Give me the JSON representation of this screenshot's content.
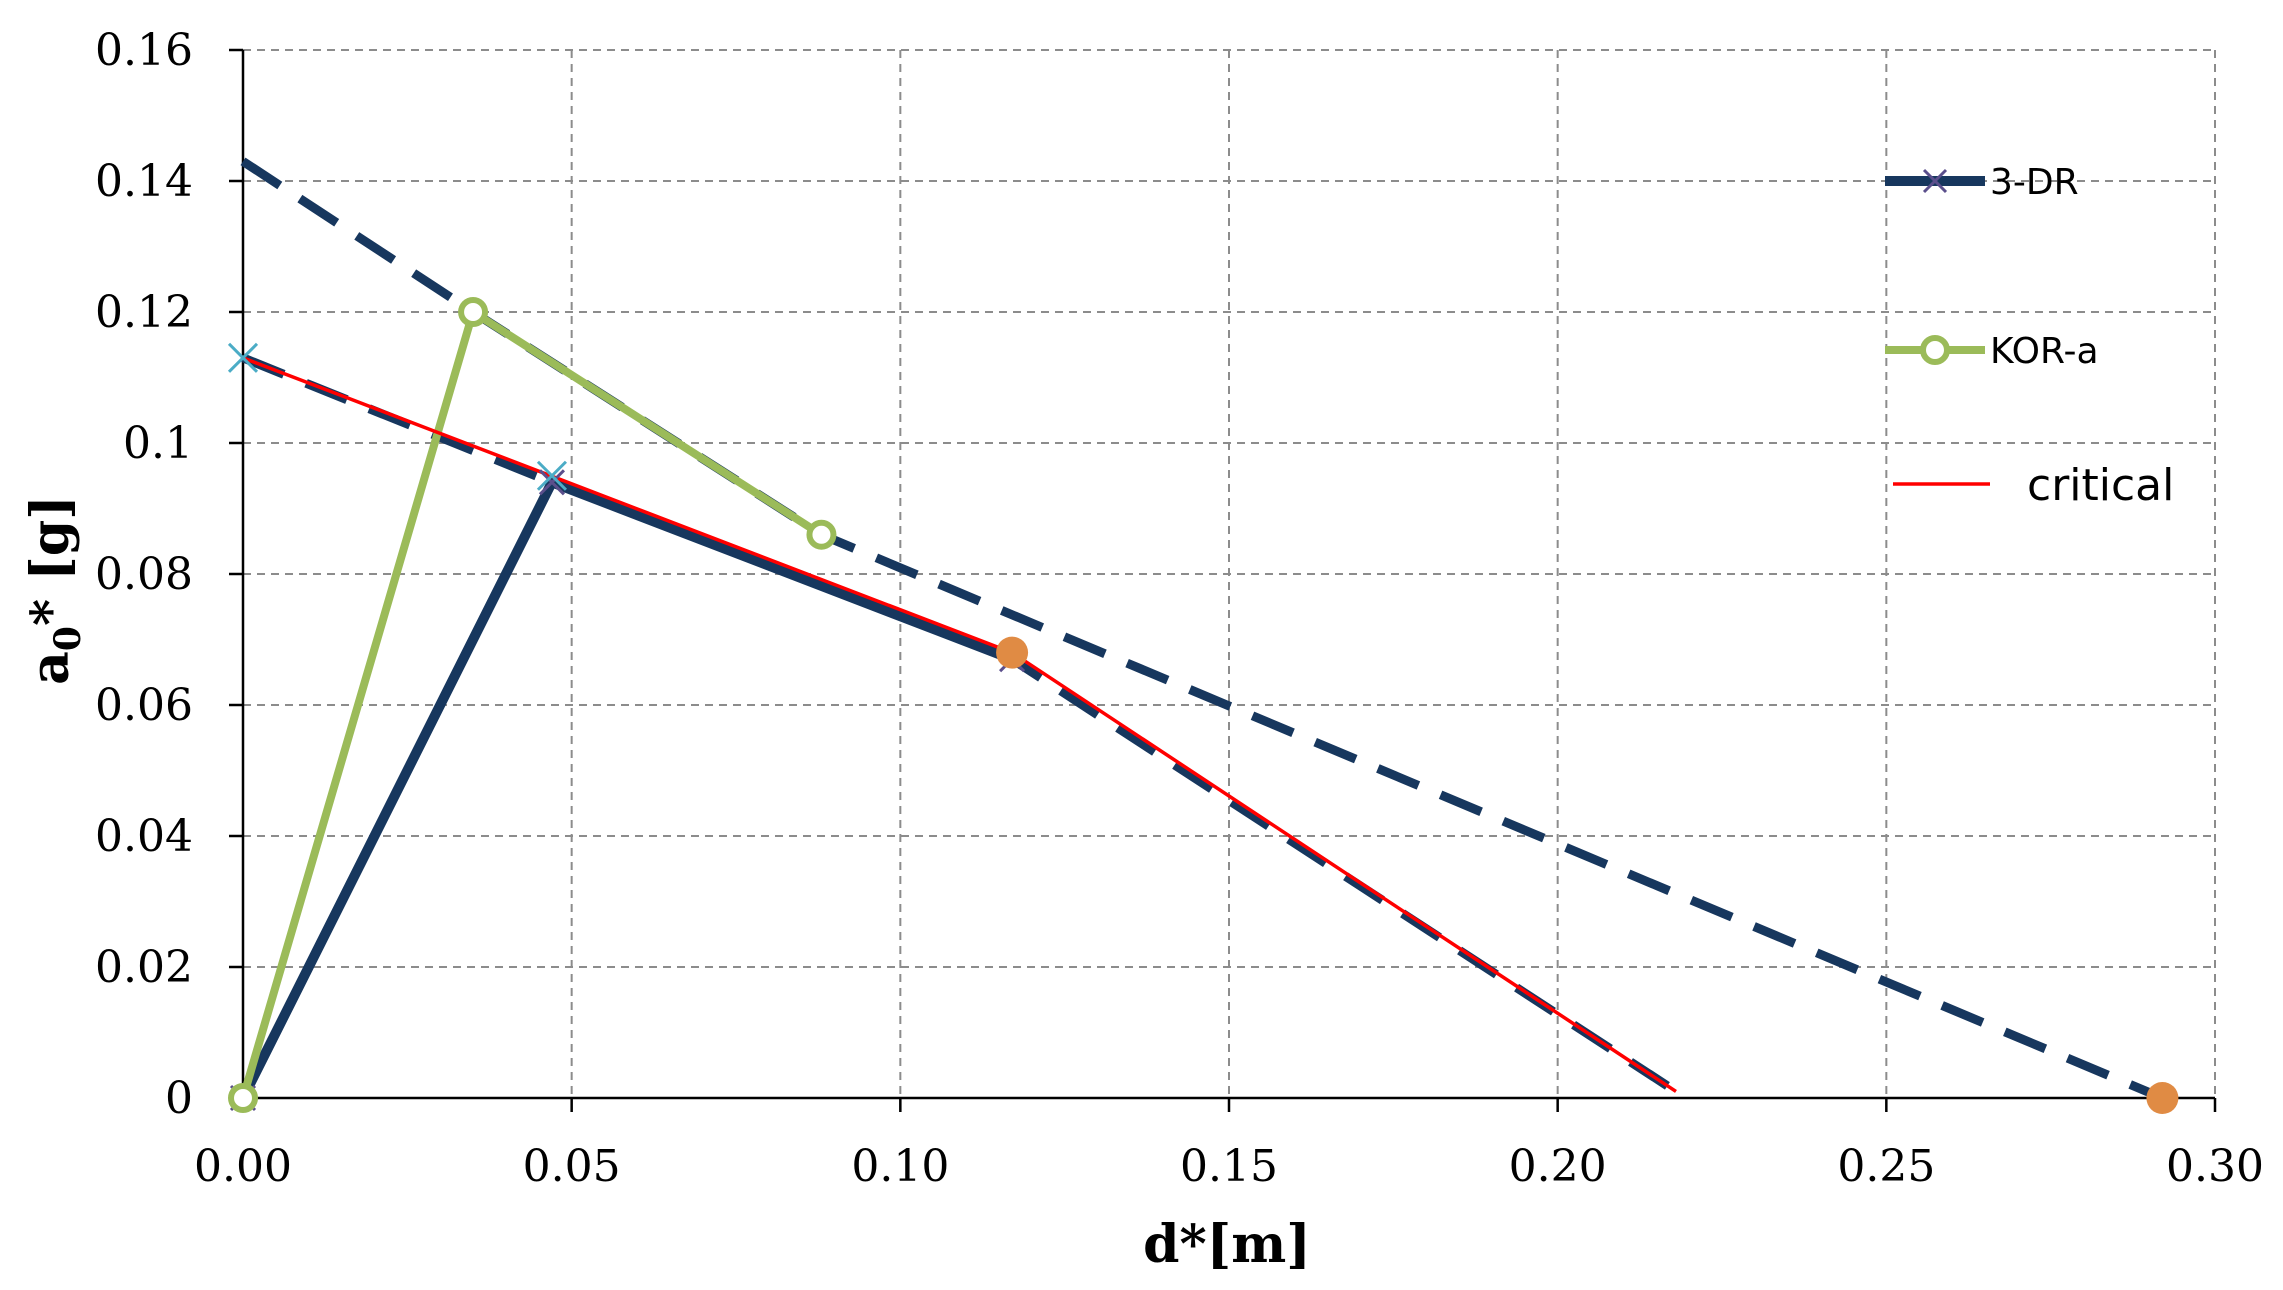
{
  "chart_data": {
    "type": "line",
    "xlabel": "d*[m]",
    "ylabel_main": "a",
    "ylabel_sub": "0",
    "ylabel_rest": "* [g]",
    "xlim": [
      0,
      0.3
    ],
    "ylim": [
      0,
      0.16
    ],
    "xticks": [
      0,
      0.05,
      0.1,
      0.15,
      0.2,
      0.25,
      0.3
    ],
    "yticks": [
      0,
      0.02,
      0.04,
      0.06,
      0.08,
      0.1,
      0.12,
      0.14,
      0.16
    ],
    "xtick_labels": [
      "0.00",
      "0.05",
      "0.10",
      "0.15",
      "0.20",
      "0.25",
      "0.30"
    ],
    "ytick_labels": [
      "0",
      "0.02",
      "0.04",
      "0.06",
      "0.08",
      "0.1",
      "0.12",
      "0.14",
      "0.16"
    ],
    "grid": true,
    "legend_position": "right",
    "series": [
      {
        "name": "3-DR",
        "color": "#17375e",
        "marker": "x",
        "points": [
          [
            0,
            0
          ],
          [
            0.047,
            0.094
          ],
          [
            0.117,
            0.067
          ]
        ]
      },
      {
        "name": "KOR-a",
        "color": "#9bbb59",
        "marker": "circle",
        "points": [
          [
            0,
            0
          ],
          [
            0.035,
            0.12
          ],
          [
            0.088,
            0.086
          ]
        ]
      },
      {
        "name": "critical",
        "color": "#ff0000",
        "marker": "none",
        "points": [
          [
            0,
            0.113
          ],
          [
            0.117,
            0.068
          ],
          [
            0.218,
            0.001
          ]
        ]
      }
    ],
    "capacity_lines": [
      {
        "color": "#17375e",
        "style": "dashed",
        "points": [
          [
            0,
            0.143
          ],
          [
            0.035,
            0.12
          ],
          [
            0.088,
            0.086
          ],
          [
            0.292,
            0
          ]
        ]
      },
      {
        "color": "#17375e",
        "style": "dashed",
        "points": [
          [
            0,
            0.113
          ],
          [
            0.047,
            0.094
          ],
          [
            0.117,
            0.067
          ],
          [
            0.218,
            0.001
          ]
        ]
      }
    ],
    "extra_markers": [
      {
        "type": "x",
        "color": "#4bacc6",
        "point": [
          0,
          0.113
        ]
      },
      {
        "type": "x",
        "color": "#4bacc6",
        "point": [
          0.047,
          0.095
        ]
      },
      {
        "type": "dot",
        "color": "#e08b44",
        "point": [
          0.117,
          0.068
        ]
      },
      {
        "type": "dot",
        "color": "#e08b44",
        "point": [
          0.292,
          0
        ]
      }
    ]
  }
}
